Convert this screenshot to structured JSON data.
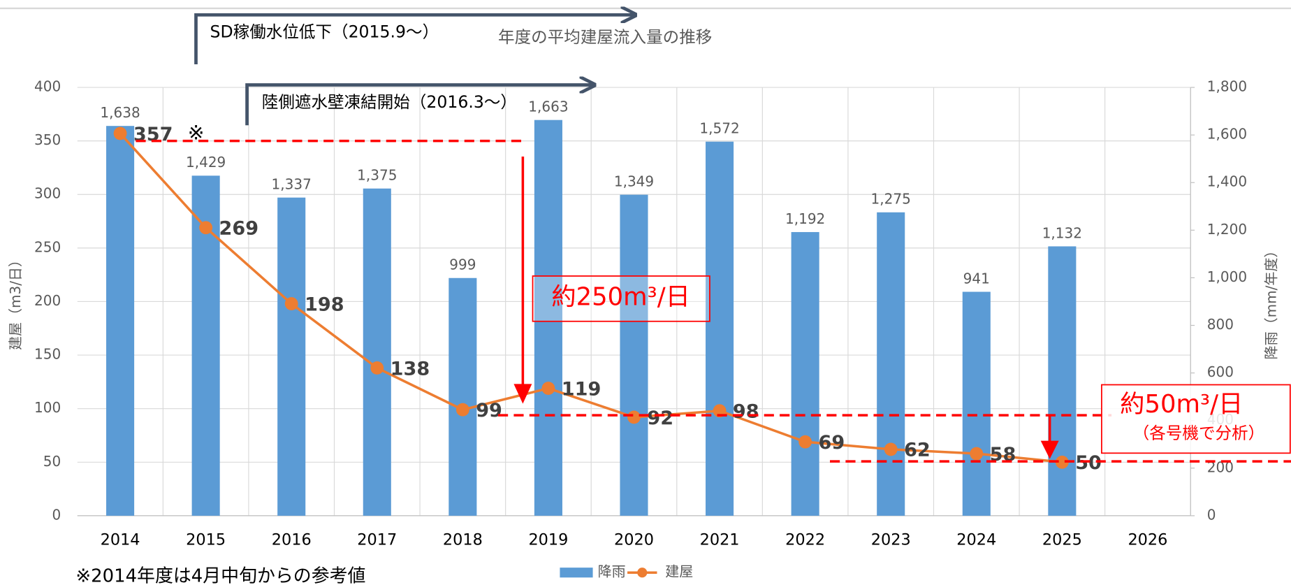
{
  "chart_data": {
    "type": "bar_line",
    "title": "年度の平均建屋流入量の推移",
    "y_label": "建屋（m3/日）",
    "y2_label": "降雨（mm/年度）",
    "categories": [
      "2014",
      "2015",
      "2016",
      "2017",
      "2018",
      "2019",
      "2020",
      "2021",
      "2022",
      "2023",
      "2024",
      "2025",
      "2026"
    ],
    "series": [
      {
        "name": "降雨",
        "type": "bar",
        "axis": "y2",
        "color": "#5b9bd5",
        "values": [
          1638,
          1429,
          1337,
          1375,
          999,
          1663,
          1349,
          1572,
          1192,
          1275,
          941,
          1132,
          null
        ],
        "value_labels": [
          "1,638",
          "1,429",
          "1,337",
          "1,375",
          "999",
          "1,663",
          "1,349",
          "1,572",
          "1,192",
          "1,275",
          "941",
          "1,132",
          null
        ]
      },
      {
        "name": "建屋",
        "type": "line",
        "axis": "y",
        "color": "#ed7d31",
        "values": [
          357,
          269,
          198,
          138,
          99,
          119,
          92,
          98,
          69,
          62,
          58,
          50,
          null
        ]
      }
    ],
    "ylim": [
      0,
      400
    ],
    "yticks": [
      0,
      50,
      100,
      150,
      200,
      250,
      300,
      350,
      400
    ],
    "y2lim": [
      0,
      1800
    ],
    "y2ticks": [
      0,
      200,
      400,
      600,
      800,
      {
        "value": 1000,
        "label": "1,000"
      },
      {
        "value": 1200,
        "label": "1,200"
      },
      {
        "value": 1400,
        "label": "1,400"
      },
      {
        "value": 1600,
        "label": "1,600"
      },
      {
        "value": 1800,
        "label": "1,800"
      }
    ],
    "grid": true,
    "annotations": [
      "SD稼働水位低下（2015.9～）",
      "陸側遮水壁凍結開始（2016.3～）",
      "※",
      "約250m³/日",
      "約50m³/日",
      "（各号機で分析）",
      "※2014年度は4月中旬からの参考値"
    ]
  }
}
